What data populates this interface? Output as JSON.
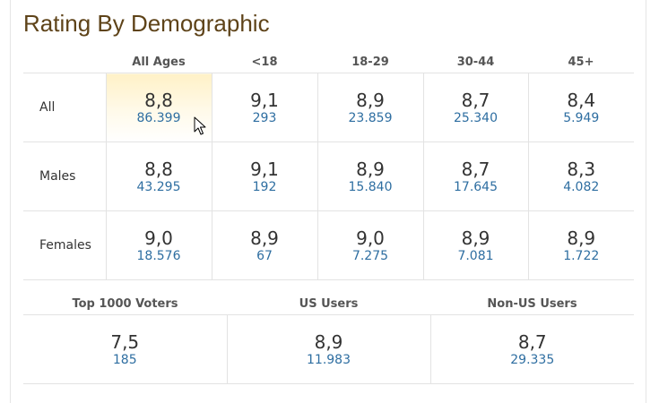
{
  "title": "Rating By Demographic",
  "age_headers": [
    "All Ages",
    "<18",
    "18-29",
    "30-44",
    "45+"
  ],
  "rows": [
    {
      "label": "All",
      "cells": [
        {
          "rating": "8,8",
          "votes": "86.399"
        },
        {
          "rating": "9,1",
          "votes": "293"
        },
        {
          "rating": "8,9",
          "votes": "23.859"
        },
        {
          "rating": "8,7",
          "votes": "25.340"
        },
        {
          "rating": "8,4",
          "votes": "5.949"
        }
      ]
    },
    {
      "label": "Males",
      "cells": [
        {
          "rating": "8,8",
          "votes": "43.295"
        },
        {
          "rating": "9,1",
          "votes": "192"
        },
        {
          "rating": "8,9",
          "votes": "15.840"
        },
        {
          "rating": "8,7",
          "votes": "17.645"
        },
        {
          "rating": "8,3",
          "votes": "4.082"
        }
      ]
    },
    {
      "label": "Females",
      "cells": [
        {
          "rating": "9,0",
          "votes": "18.576"
        },
        {
          "rating": "8,9",
          "votes": "67"
        },
        {
          "rating": "9,0",
          "votes": "7.275"
        },
        {
          "rating": "8,9",
          "votes": "7.081"
        },
        {
          "rating": "8,9",
          "votes": "1.722"
        }
      ]
    }
  ],
  "bottom_headers": [
    "Top 1000 Voters",
    "US Users",
    "Non-US Users"
  ],
  "bottom_cells": [
    {
      "rating": "7,5",
      "votes": "185"
    },
    {
      "rating": "8,9",
      "votes": "11.983"
    },
    {
      "rating": "8,7",
      "votes": "29.335"
    }
  ],
  "colors": {
    "title": "#5e4319",
    "votes_link": "#2e6ea1",
    "highlight": "#fff1c7"
  },
  "icons": {
    "cursor": "mouse-pointer-icon"
  }
}
